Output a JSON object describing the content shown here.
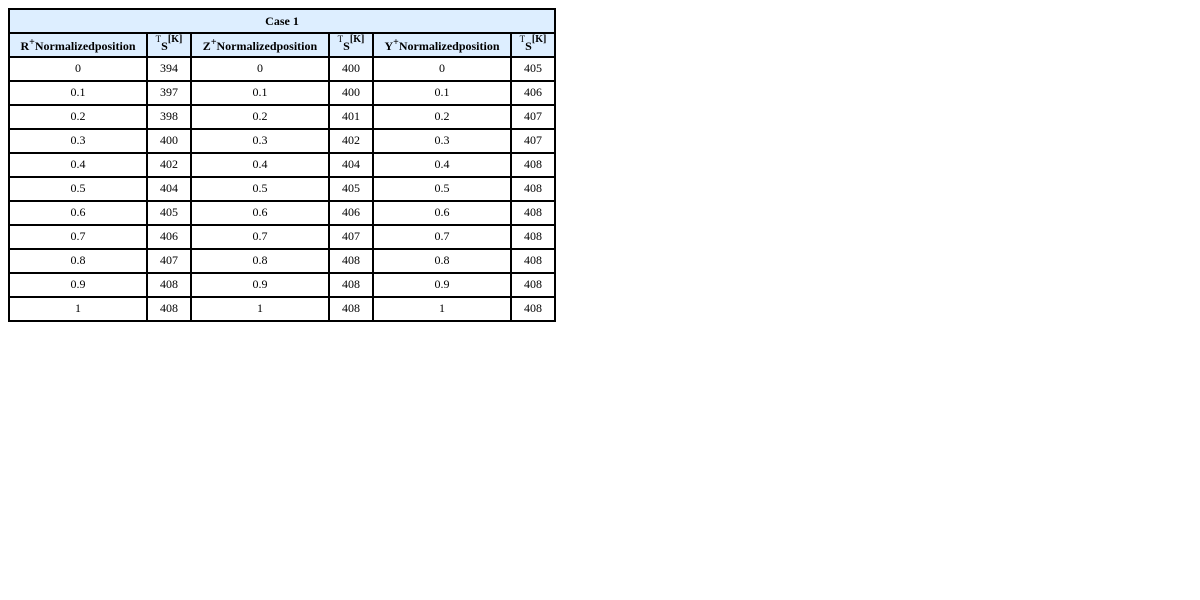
{
  "table": {
    "title": "Case 1",
    "headers": [
      {
        "var": "R",
        "sup": "+",
        "label": "Normalizedposition"
      },
      {
        "t": "T",
        "sub": "S",
        "unit": "[K]"
      },
      {
        "var": "Z",
        "sup": "+",
        "label": "Normalizedposition"
      },
      {
        "t": "T",
        "sub": "S",
        "unit": "[K]"
      },
      {
        "var": "Y",
        "sup": "+",
        "label": "Normalizedposition"
      },
      {
        "t": "T",
        "sub": "S",
        "unit": "[K]"
      }
    ],
    "rows": [
      [
        "0",
        "394",
        "0",
        "400",
        "0",
        "405"
      ],
      [
        "0.1",
        "397",
        "0.1",
        "400",
        "0.1",
        "406"
      ],
      [
        "0.2",
        "398",
        "0.2",
        "401",
        "0.2",
        "407"
      ],
      [
        "0.3",
        "400",
        "0.3",
        "402",
        "0.3",
        "407"
      ],
      [
        "0.4",
        "402",
        "0.4",
        "404",
        "0.4",
        "408"
      ],
      [
        "0.5",
        "404",
        "0.5",
        "405",
        "0.5",
        "408"
      ],
      [
        "0.6",
        "405",
        "0.6",
        "406",
        "0.6",
        "408"
      ],
      [
        "0.7",
        "406",
        "0.7",
        "407",
        "0.7",
        "408"
      ],
      [
        "0.8",
        "407",
        "0.8",
        "408",
        "0.8",
        "408"
      ],
      [
        "0.9",
        "408",
        "0.9",
        "408",
        "0.9",
        "408"
      ],
      [
        "1",
        "408",
        "1",
        "408",
        "1",
        "408"
      ]
    ]
  }
}
